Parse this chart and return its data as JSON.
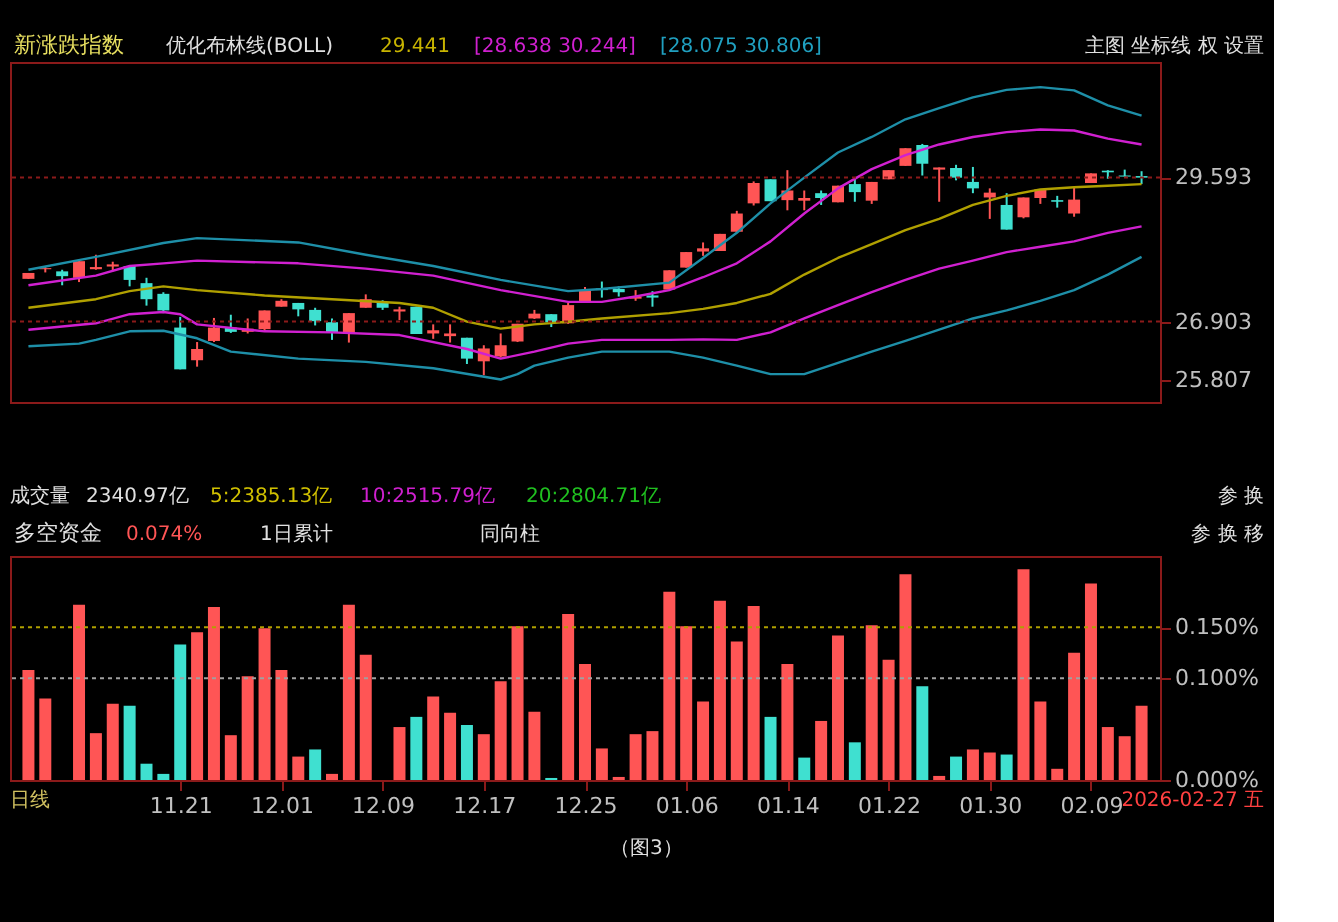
{
  "chart_data": [
    {
      "type": "candlestick",
      "title": "新涨跌指数",
      "annotations": [
        "优化布林线(BOLL)",
        "29.441",
        "[28.638 30.244]",
        "[28.075 30.806]",
        "主图 坐标线 权 设置"
      ],
      "categories": [
        null,
        null,
        null,
        null,
        null,
        null,
        null,
        null,
        null,
        "11.21",
        null,
        null,
        null,
        null,
        null,
        "12.01",
        null,
        null,
        null,
        null,
        null,
        "12.09",
        null,
        null,
        null,
        null,
        null,
        "12.17",
        null,
        null,
        null,
        null,
        null,
        "12.25",
        null,
        null,
        null,
        null,
        null,
        "01.06",
        null,
        null,
        null,
        null,
        null,
        "01.14",
        null,
        null,
        null,
        null,
        null,
        "01.22",
        null,
        null,
        null,
        null,
        null,
        "01.30",
        null,
        null,
        null,
        null,
        null,
        "02.09",
        null,
        null,
        null
      ],
      "ohlc": [
        [
          27.7,
          27.81,
          27.7,
          27.81
        ],
        [
          27.88,
          27.94,
          27.82,
          27.9
        ],
        [
          27.84,
          27.87,
          27.58,
          27.75
        ],
        [
          27.72,
          28.05,
          27.64,
          28.03
        ],
        [
          27.88,
          28.15,
          27.87,
          27.92
        ],
        [
          27.93,
          28.02,
          27.84,
          27.97
        ],
        [
          27.94,
          27.94,
          27.56,
          27.68
        ],
        [
          27.62,
          27.72,
          27.2,
          27.32
        ],
        [
          27.42,
          27.45,
          27.06,
          27.11
        ],
        [
          26.79,
          26.99,
          26.01,
          26.01
        ],
        [
          26.18,
          26.52,
          26.06,
          26.39
        ],
        [
          26.54,
          26.97,
          26.52,
          26.79
        ],
        [
          26.79,
          27.03,
          26.69,
          26.71
        ],
        [
          26.71,
          26.96,
          26.68,
          26.77
        ],
        [
          26.76,
          27.11,
          26.72,
          27.11
        ],
        [
          27.18,
          27.32,
          27.18,
          27.29
        ],
        [
          27.25,
          27.25,
          27.0,
          27.13
        ],
        [
          27.12,
          27.16,
          26.83,
          26.91
        ],
        [
          26.89,
          26.96,
          26.56,
          26.69
        ],
        [
          26.67,
          27.06,
          26.51,
          27.06
        ],
        [
          27.16,
          27.41,
          27.16,
          27.32
        ],
        [
          27.27,
          27.3,
          27.12,
          27.16
        ],
        [
          27.09,
          27.18,
          26.93,
          27.13
        ],
        [
          27.18,
          27.18,
          26.67,
          26.67
        ],
        [
          26.68,
          26.85,
          26.58,
          26.74
        ],
        [
          26.63,
          26.85,
          26.51,
          26.68
        ],
        [
          26.6,
          26.6,
          26.11,
          26.21
        ],
        [
          26.16,
          26.46,
          25.9,
          26.4
        ],
        [
          26.25,
          26.68,
          26.23,
          26.46
        ],
        [
          26.53,
          26.86,
          26.52,
          26.86
        ],
        [
          26.96,
          27.12,
          26.95,
          27.05
        ],
        [
          27.04,
          27.04,
          26.8,
          26.89
        ],
        [
          26.87,
          27.25,
          26.86,
          27.21
        ],
        [
          27.25,
          27.55,
          27.25,
          27.48
        ],
        [
          27.52,
          27.65,
          27.35,
          27.49
        ],
        [
          27.51,
          27.56,
          27.37,
          27.45
        ],
        [
          27.33,
          27.49,
          27.29,
          27.37
        ],
        [
          27.39,
          27.47,
          27.18,
          27.35
        ],
        [
          27.5,
          27.86,
          27.5,
          27.86
        ],
        [
          27.91,
          28.2,
          27.91,
          28.2
        ],
        [
          28.21,
          28.38,
          28.13,
          28.27
        ],
        [
          28.22,
          28.54,
          28.22,
          28.54
        ],
        [
          28.58,
          28.97,
          28.56,
          28.92
        ],
        [
          29.11,
          29.52,
          29.07,
          29.49
        ],
        [
          29.56,
          29.56,
          29.15,
          29.15
        ],
        [
          29.17,
          29.73,
          28.98,
          29.35
        ],
        [
          29.16,
          29.35,
          28.98,
          29.21
        ],
        [
          29.3,
          29.35,
          29.08,
          29.21
        ],
        [
          29.13,
          29.44,
          29.13,
          29.44
        ],
        [
          29.47,
          29.57,
          29.14,
          29.32
        ],
        [
          29.16,
          29.51,
          29.1,
          29.51
        ],
        [
          29.56,
          29.73,
          29.56,
          29.73
        ],
        [
          29.81,
          30.14,
          29.81,
          30.14
        ],
        [
          30.2,
          30.22,
          29.63,
          29.85
        ],
        [
          29.74,
          29.78,
          29.14,
          29.78
        ],
        [
          29.77,
          29.83,
          29.54,
          29.59
        ],
        [
          29.51,
          29.79,
          29.3,
          29.39
        ],
        [
          29.22,
          29.39,
          28.82,
          29.31
        ],
        [
          29.08,
          29.3,
          28.62,
          28.62
        ],
        [
          28.85,
          29.22,
          28.83,
          29.22
        ],
        [
          29.21,
          29.37,
          29.1,
          29.37
        ],
        [
          29.17,
          29.25,
          29.03,
          29.14
        ],
        [
          28.92,
          29.42,
          28.86,
          29.18
        ],
        [
          29.49,
          29.67,
          29.49,
          29.67
        ],
        [
          29.72,
          29.73,
          29.57,
          29.69
        ],
        [
          29.63,
          29.74,
          29.61,
          29.61
        ],
        [
          29.62,
          29.71,
          29.47,
          29.59
        ]
      ],
      "colors": [
        "#ff5555",
        "#ff5555",
        "#3fe0d0",
        "#ff5555",
        "#ff5555",
        "#ff5555",
        "#3fe0d0",
        "#3fe0d0",
        "#3fe0d0",
        "#3fe0d0",
        "#ff5555",
        "#ff5555",
        "#3fe0d0",
        "#ff5555",
        "#ff5555",
        "#ff5555",
        "#3fe0d0",
        "#3fe0d0",
        "#3fe0d0",
        "#ff5555",
        "#ff5555",
        "#3fe0d0",
        "#ff5555",
        "#3fe0d0",
        "#ff5555",
        "#ff5555",
        "#3fe0d0",
        "#ff5555",
        "#ff5555",
        "#ff5555",
        "#ff5555",
        "#3fe0d0",
        "#ff5555",
        "#ff5555",
        "#3fe0d0",
        "#3fe0d0",
        "#ff5555",
        "#3fe0d0",
        "#ff5555",
        "#ff5555",
        "#ff5555",
        "#ff5555",
        "#ff5555",
        "#ff5555",
        "#3fe0d0",
        "#ff5555",
        "#ff5555",
        "#3fe0d0",
        "#ff5555",
        "#3fe0d0",
        "#ff5555",
        "#ff5555",
        "#ff5555",
        "#3fe0d0",
        "#ff5555",
        "#3fe0d0",
        "#3fe0d0",
        "#ff5555",
        "#3fe0d0",
        "#ff5555",
        "#ff5555",
        "#3fe0d0",
        "#ff5555",
        "#ff5555",
        "#3fe0d0",
        "#3fe0d0",
        "#3fe0d0"
      ],
      "series": [
        {
          "type": "line",
          "color": "#1e8fa8",
          "values": [
            27.87,
            null,
            null,
            null,
            28.11,
            null,
            null,
            null,
            28.37,
            null,
            28.46,
            null,
            null,
            null,
            null,
            null,
            28.38,
            null,
            null,
            null,
            28.15,
            null,
            null,
            null,
            27.94,
            null,
            null,
            null,
            27.68,
            null,
            null,
            null,
            27.47,
            null,
            27.51,
            null,
            null,
            null,
            27.63,
            null,
            28.09,
            null,
            28.56,
            null,
            29.11,
            null,
            29.59,
            null,
            30.06,
            null,
            30.35,
            null,
            30.68,
            null,
            30.89,
            null,
            31.09,
            null,
            31.23,
            null,
            31.28,
            null,
            31.22,
            null,
            30.94,
            null,
            30.75
          ]
        },
        {
          "type": "line",
          "color": "#d020d0",
          "values": [
            27.58,
            null,
            null,
            null,
            27.76,
            null,
            27.94,
            null,
            27.99,
            null,
            28.04,
            null,
            null,
            null,
            null,
            null,
            27.99,
            null,
            null,
            null,
            27.89,
            null,
            null,
            null,
            27.76,
            null,
            null,
            null,
            27.49,
            null,
            null,
            null,
            27.27,
            null,
            27.27,
            null,
            27.37,
            null,
            27.49,
            null,
            27.73,
            null,
            27.99,
            null,
            28.4,
            null,
            28.92,
            null,
            29.39,
            null,
            29.75,
            null,
            30.01,
            null,
            30.21,
            null,
            30.35,
            null,
            30.44,
            null,
            30.49,
            null,
            30.47,
            null,
            30.32,
            null,
            30.21
          ]
        },
        {
          "type": "line",
          "color": "#b0a000",
          "values": [
            27.16,
            null,
            null,
            null,
            27.32,
            null,
            27.47,
            null,
            27.56,
            null,
            27.49,
            null,
            null,
            null,
            27.39,
            null,
            null,
            null,
            27.32,
            null,
            null,
            null,
            27.25,
            null,
            27.16,
            null,
            26.9,
            null,
            26.77,
            null,
            26.85,
            null,
            26.9,
            null,
            26.96,
            null,
            null,
            null,
            27.06,
            null,
            27.14,
            null,
            27.25,
            null,
            27.42,
            null,
            27.78,
            null,
            28.09,
            null,
            28.35,
            null,
            28.61,
            null,
            28.82,
            null,
            29.08,
            null,
            29.25,
            null,
            29.37,
            null,
            29.41,
            null,
            29.44,
            null,
            29.47
          ]
        },
        {
          "type": "line",
          "color": "#d020d0",
          "values": [
            26.75,
            null,
            null,
            null,
            26.87,
            null,
            27.04,
            null,
            27.08,
            27.04,
            26.85,
            null,
            null,
            null,
            26.72,
            null,
            null,
            null,
            26.7,
            null,
            null,
            null,
            26.65,
            null,
            null,
            null,
            26.39,
            null,
            26.21,
            null,
            26.34,
            null,
            26.49,
            null,
            26.56,
            null,
            null,
            null,
            26.56,
            null,
            26.57,
            null,
            26.56,
            null,
            26.7,
            null,
            26.96,
            null,
            27.21,
            null,
            27.45,
            null,
            27.68,
            null,
            27.89,
            null,
            28.04,
            null,
            28.2,
            null,
            28.3,
            null,
            28.4,
            null,
            28.56,
            null,
            28.68
          ]
        },
        {
          "type": "line",
          "color": "#1e8fa8",
          "values": [
            26.44,
            null,
            null,
            26.49,
            26.56,
            null,
            26.72,
            null,
            26.73,
            null,
            26.59,
            null,
            26.34,
            null,
            null,
            null,
            26.21,
            null,
            null,
            null,
            26.15,
            null,
            null,
            null,
            26.03,
            null,
            null,
            null,
            25.82,
            25.92,
            26.08,
            null,
            26.23,
            null,
            26.34,
            null,
            null,
            null,
            26.34,
            null,
            26.23,
            null,
            26.08,
            null,
            25.92,
            null,
            25.92,
            null,
            26.13,
            null,
            26.34,
            null,
            26.54,
            null,
            26.75,
            null,
            26.96,
            null,
            27.11,
            null,
            27.29,
            null,
            27.49,
            null,
            27.78,
            null,
            28.11
          ]
        }
      ],
      "ylim": [
        25.4,
        31.75
      ],
      "yticks": [
        {
          "value": 25.807,
          "label": "25.807"
        },
        {
          "value": 26.903,
          "label": "26.903"
        },
        {
          "value": 29.593,
          "label": "29.593"
        }
      ],
      "tick_labels": "y",
      "ref_lines": [
        {
          "axis": "y",
          "value": 29.593,
          "color": "#8b1a1a",
          "line_style": "dotted"
        },
        {
          "axis": "y",
          "value": 26.903,
          "color": "#8b1a1a",
          "line_style": "dotted"
        }
      ]
    },
    {
      "type": "bar",
      "title": "多空资金",
      "annotations": [
        "成交量",
        "2340.97亿",
        "5:2385.13亿",
        "10:2515.79亿",
        "20:2804.71亿",
        "参 换",
        "0.074%",
        "1日累计",
        "同向柱",
        "参 换 移",
        "日线",
        "2026-02-27 五",
        "（图3）"
      ],
      "categories": [
        null,
        null,
        null,
        null,
        null,
        null,
        null,
        null,
        null,
        "11.21",
        null,
        null,
        null,
        null,
        null,
        "12.01",
        null,
        null,
        null,
        null,
        null,
        "12.09",
        null,
        null,
        null,
        null,
        null,
        "12.17",
        null,
        null,
        null,
        null,
        null,
        "12.25",
        null,
        null,
        null,
        null,
        null,
        "01.06",
        null,
        null,
        null,
        null,
        null,
        "01.14",
        null,
        null,
        null,
        null,
        null,
        "01.22",
        null,
        null,
        null,
        null,
        null,
        "01.30",
        null,
        null,
        null,
        null,
        null,
        "02.09",
        null,
        null,
        null
      ],
      "values": [
        0.108,
        0.08,
        0,
        0.172,
        0.046,
        0.075,
        0.073,
        0.016,
        0.006,
        0.133,
        0.145,
        0.17,
        0.044,
        0.102,
        0.149,
        0.108,
        0.023,
        0.03,
        0.006,
        0.172,
        0.123,
        0,
        0.052,
        0.062,
        0.082,
        0.066,
        0.054,
        0.045,
        0.097,
        0.151,
        0.067,
        0.002,
        0.163,
        0.114,
        0.031,
        0.003,
        0.045,
        0.048,
        0.185,
        0.151,
        0.077,
        0.176,
        0.136,
        0.171,
        0.062,
        0.114,
        0.022,
        0.058,
        0.142,
        0.037,
        0.152,
        0.118,
        0.202,
        0.092,
        0.004,
        0.023,
        0.03,
        0.027,
        0.025,
        0.207,
        0.077,
        0.011,
        0.125,
        0.193,
        0.052,
        0.043,
        0.073
      ],
      "colors": [
        "#ff5555",
        "#ff5555",
        "#ff5555",
        "#ff5555",
        "#ff5555",
        "#ff5555",
        "#3fe0d0",
        "#3fe0d0",
        "#3fe0d0",
        "#3fe0d0",
        "#ff5555",
        "#ff5555",
        "#ff5555",
        "#ff5555",
        "#ff5555",
        "#ff5555",
        "#ff5555",
        "#3fe0d0",
        "#ff5555",
        "#ff5555",
        "#ff5555",
        "#ff5555",
        "#ff5555",
        "#3fe0d0",
        "#ff5555",
        "#ff5555",
        "#3fe0d0",
        "#ff5555",
        "#ff5555",
        "#ff5555",
        "#ff5555",
        "#3fe0d0",
        "#ff5555",
        "#ff5555",
        "#ff5555",
        "#ff5555",
        "#ff5555",
        "#ff5555",
        "#ff5555",
        "#ff5555",
        "#ff5555",
        "#ff5555",
        "#ff5555",
        "#ff5555",
        "#3fe0d0",
        "#ff5555",
        "#3fe0d0",
        "#ff5555",
        "#ff5555",
        "#3fe0d0",
        "#ff5555",
        "#ff5555",
        "#ff5555",
        "#3fe0d0",
        "#ff5555",
        "#3fe0d0",
        "#ff5555",
        "#ff5555",
        "#3fe0d0",
        "#ff5555",
        "#ff5555",
        "#ff5555",
        "#ff5555",
        "#ff5555",
        "#ff5555",
        "#ff5555",
        "#ff5555"
      ],
      "ylim": [
        0,
        0.22
      ],
      "yticks": [
        {
          "value": 0,
          "label": "0.000%"
        },
        {
          "value": 0.1,
          "label": "0.100%"
        },
        {
          "value": 0.15,
          "label": "0.150%"
        }
      ],
      "ref_lines": [
        {
          "axis": "y",
          "value": 0.15,
          "color": "#b0a000",
          "line_style": "dotted"
        },
        {
          "axis": "y",
          "value": 0.1,
          "color": "#a0a0a0",
          "line_style": "dotted"
        }
      ]
    }
  ]
}
